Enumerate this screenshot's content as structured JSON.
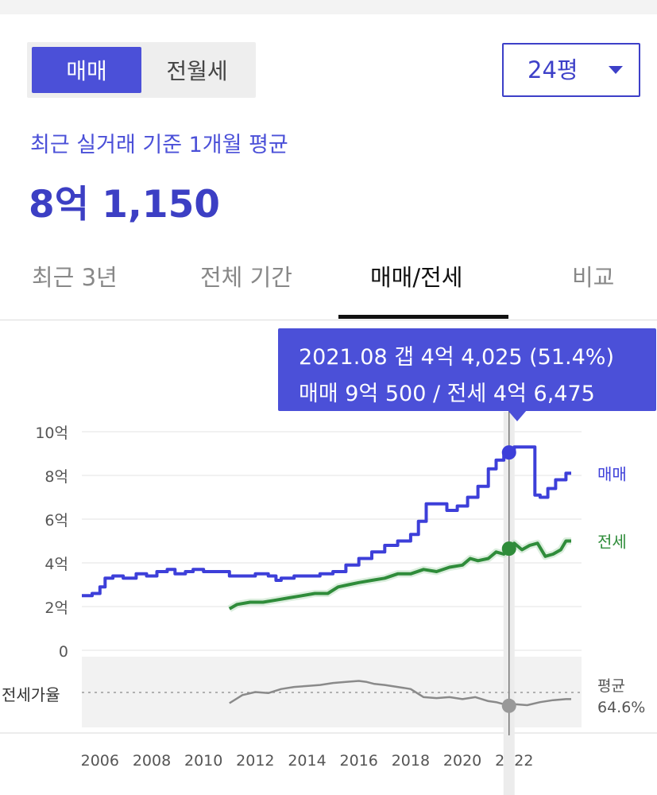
{
  "header": {
    "tabs": [
      "매매",
      "전월세"
    ],
    "active_tab": 0,
    "area_select": "24평",
    "subtitle": "최근 실거래 기준 1개월 평균",
    "price": "8억 1,150"
  },
  "period_tabs": [
    "최근 3년",
    "전체 기간",
    "매매/전세",
    "비교"
  ],
  "active_period_tab": 2,
  "tooltip": {
    "line1": "2021.08  갭 4억 4,025 (51.4%)",
    "line2": "매매 9억 500 / 전세 4억 6,475"
  },
  "colors": {
    "sale": "#3d3fd9",
    "jeonse": "#2f8c3a",
    "ratio": "#8a8a8a",
    "accent": "#4b50d8"
  },
  "chart_data": {
    "type": "line",
    "title": "",
    "xlabel": "",
    "ylabel": "",
    "x_ticks": [
      "2006",
      "2008",
      "2010",
      "2012",
      "2014",
      "2016",
      "2018",
      "2020",
      "2022"
    ],
    "y_ticks": [
      "0",
      "2억",
      "4억",
      "6억",
      "8억",
      "10억"
    ],
    "ylim": [
      0,
      10
    ],
    "xlim": [
      2005.3,
      2024.6
    ],
    "series": [
      {
        "name": "매매",
        "color": "#3d3fd9",
        "x": [
          2005.3,
          2005.7,
          2006.0,
          2006.2,
          2006.5,
          2006.9,
          2007.4,
          2007.8,
          2008.2,
          2008.6,
          2008.9,
          2009.3,
          2009.6,
          2010.0,
          2010.5,
          2011.0,
          2011.5,
          2012.0,
          2012.5,
          2012.8,
          2013.0,
          2013.5,
          2014.0,
          2014.5,
          2015.0,
          2015.5,
          2016.0,
          2016.5,
          2017.0,
          2017.5,
          2018.0,
          2018.3,
          2018.6,
          2019.0,
          2019.4,
          2019.8,
          2020.2,
          2020.6,
          2021.0,
          2021.3,
          2021.6,
          2021.8,
          2022.0,
          2022.5,
          2022.8,
          2023.0,
          2023.3,
          2023.6,
          2024.0,
          2024.2
        ],
        "y": [
          2.5,
          2.6,
          2.9,
          3.3,
          3.4,
          3.3,
          3.5,
          3.4,
          3.6,
          3.7,
          3.5,
          3.6,
          3.7,
          3.6,
          3.6,
          3.4,
          3.4,
          3.5,
          3.4,
          3.2,
          3.3,
          3.4,
          3.4,
          3.5,
          3.6,
          3.9,
          4.2,
          4.5,
          4.8,
          5.0,
          5.3,
          5.9,
          6.7,
          6.7,
          6.4,
          6.6,
          7.0,
          7.5,
          8.3,
          8.7,
          9.0,
          9.05,
          9.3,
          9.3,
          7.1,
          7.0,
          7.4,
          7.8,
          8.1,
          8.1
        ]
      },
      {
        "name": "전세",
        "color": "#2f8c3a",
        "x": [
          2011.0,
          2011.3,
          2011.8,
          2012.3,
          2012.8,
          2013.3,
          2013.8,
          2014.3,
          2014.8,
          2015.2,
          2015.6,
          2016.0,
          2016.5,
          2017.0,
          2017.5,
          2018.0,
          2018.5,
          2019.0,
          2019.5,
          2020.0,
          2020.3,
          2020.6,
          2021.0,
          2021.3,
          2021.6,
          2021.8,
          2022.0,
          2022.3,
          2022.6,
          2022.9,
          2023.2,
          2023.5,
          2023.8,
          2024.0,
          2024.2
        ],
        "y": [
          1.9,
          2.1,
          2.2,
          2.2,
          2.3,
          2.4,
          2.5,
          2.6,
          2.6,
          2.9,
          3.0,
          3.1,
          3.2,
          3.3,
          3.5,
          3.5,
          3.7,
          3.6,
          3.8,
          3.9,
          4.2,
          4.1,
          4.2,
          4.5,
          4.4,
          4.65,
          4.9,
          4.6,
          4.8,
          4.9,
          4.3,
          4.4,
          4.6,
          5.0,
          5.0
        ]
      }
    ],
    "ratio_series": {
      "name": "전세가율",
      "color": "#8a8a8a",
      "x": [
        2011.0,
        2011.5,
        2012.0,
        2012.5,
        2013.0,
        2013.5,
        2014.0,
        2014.5,
        2015.0,
        2015.5,
        2016.0,
        2016.3,
        2016.6,
        2017.0,
        2017.5,
        2018.0,
        2018.5,
        2019.0,
        2019.5,
        2020.0,
        2020.5,
        2021.0,
        2021.3,
        2021.6,
        2021.8,
        2022.0,
        2022.5,
        2023.0,
        2023.5,
        2024.0,
        2024.2
      ],
      "y": [
        54,
        62,
        65,
        64,
        68,
        70,
        71,
        72,
        74,
        75,
        76,
        75,
        73,
        72,
        70,
        68,
        60,
        59,
        60,
        58,
        60,
        56,
        55,
        53,
        51.4,
        53,
        52,
        55,
        57,
        58,
        58
      ],
      "ylim": [
        30,
        100
      ],
      "average_label": "평균",
      "average_value": "64.6%",
      "average": 64.6
    },
    "highlight": {
      "x": 2021.8,
      "sale": 9.05,
      "jeonse": 4.65,
      "ratio": 51.4
    },
    "legend_placement": "right",
    "grid": true
  }
}
